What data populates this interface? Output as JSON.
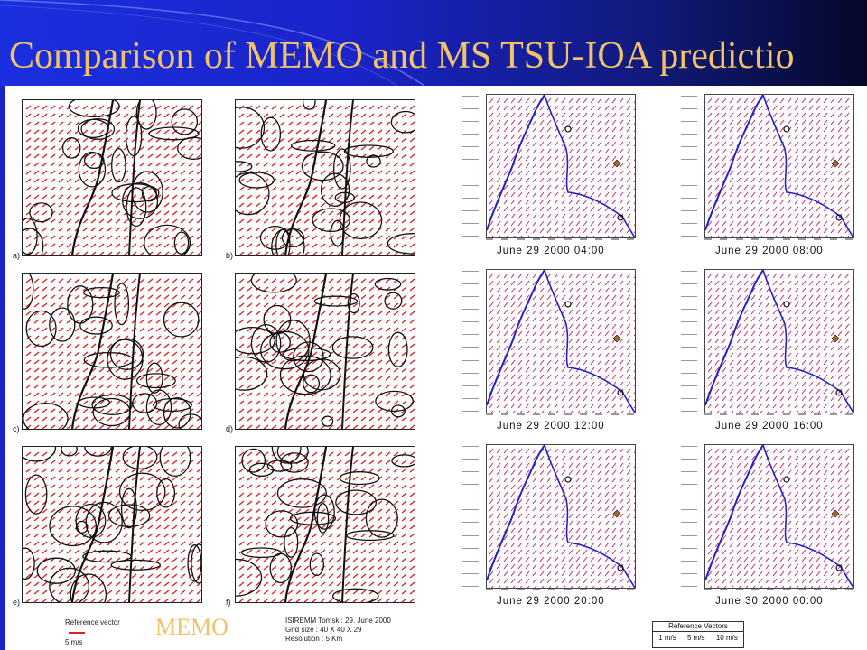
{
  "slide": {
    "title": "Comparison of MEMO and MS TSU-IOA predictio",
    "memo_label": "MEMO"
  },
  "memo": {
    "panels": [
      {
        "label": "a)"
      },
      {
        "label": "b)"
      },
      {
        "label": "c)"
      },
      {
        "label": "d)"
      },
      {
        "label": "e)"
      },
      {
        "label": "f)"
      }
    ],
    "reference_vector_label": "Reference vector",
    "reference_vector_value": "5 m/s",
    "info_line1": "ISIREMM Tomsk : 29. June 2000",
    "info_line2": "Grid size : 40 X 40 X 29",
    "info_line3": "Resolution : 5 Km"
  },
  "tsu": {
    "panels": [
      {
        "caption": "June 29 2000  04:00"
      },
      {
        "caption": "June 29 2000  08:00"
      },
      {
        "caption": "June 29 2000  12:00"
      },
      {
        "caption": "June 29 2000  16:00"
      },
      {
        "caption": "June 29 2000  20:00"
      },
      {
        "caption": "June 30 2000  00:00"
      }
    ],
    "reference_title": "Reference Vectors",
    "reference_values": [
      "1 m/s",
      "5 m/s",
      "10 m/s"
    ]
  },
  "colors": {
    "banner_blue": "#1a24c8",
    "title_gold": "#f2c26a",
    "vector_red": "#dd2222",
    "vector_magenta": "#cc2266",
    "river_blue": "#2222cc"
  }
}
